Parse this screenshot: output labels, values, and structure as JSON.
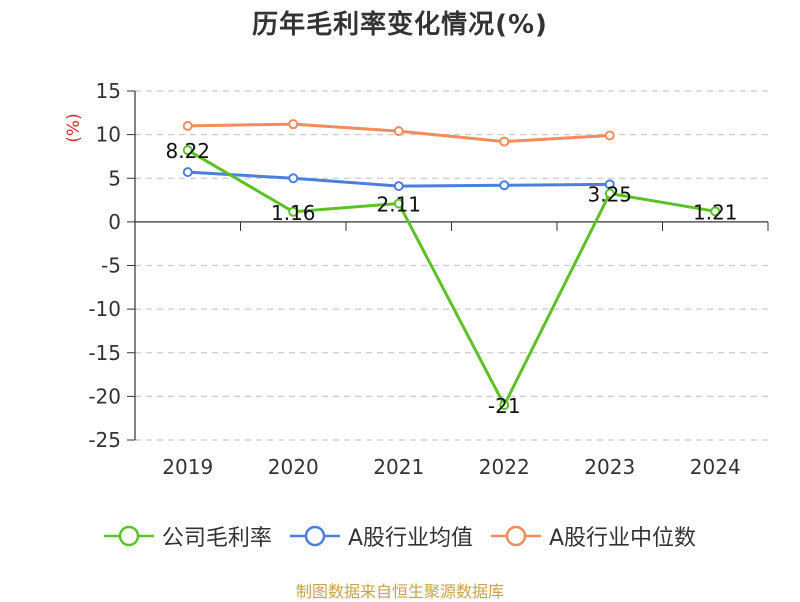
{
  "chart_data": {
    "type": "line",
    "title": "历年毛利率变化情况(%)",
    "ylabel": "(%)",
    "xlabel": "",
    "categories": [
      "2019",
      "2020",
      "2021",
      "2022",
      "2023",
      "2024"
    ],
    "ylim": [
      -25,
      15
    ],
    "yticks": [
      15,
      10,
      5,
      0,
      -5,
      -10,
      -15,
      -20,
      -25
    ],
    "ytick_labels": [
      "15",
      "10",
      "5",
      "0",
      "-5",
      "-10",
      "-15",
      "-20",
      "-25"
    ],
    "grid": true,
    "legend_position": "bottom",
    "series": [
      {
        "name": "公司毛利率",
        "color": "#5cc127",
        "values": [
          8.22,
          1.16,
          2.11,
          -21,
          3.25,
          1.21
        ],
        "labels": [
          "8.22",
          "1.16",
          "2.11",
          "-21",
          "3.25",
          "1.21"
        ]
      },
      {
        "name": "A股行业均值",
        "color": "#4a7fdc",
        "values": [
          5.7,
          5.0,
          4.1,
          4.2,
          4.3,
          null
        ]
      },
      {
        "name": "A股行业中位数",
        "color": "#f28c5a",
        "values": [
          11.0,
          11.2,
          10.4,
          9.2,
          9.9,
          null
        ]
      }
    ]
  },
  "source_note": "制图数据来自恒生聚源数据库"
}
